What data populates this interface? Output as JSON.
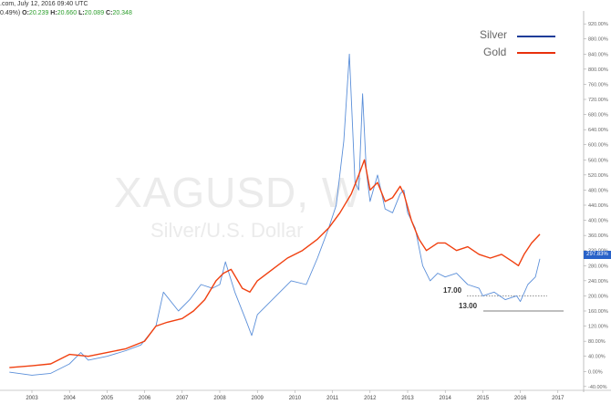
{
  "header": {
    "line1_text": ".com, July 12, 2016 09:40 UTC",
    "line2_prefix": "0.49%)",
    "o_label": "O:",
    "o_value": "20.239",
    "h_label": "H:",
    "h_value": "20.660",
    "l_label": "L:",
    "l_value": "20.089",
    "c_label": "C:",
    "c_value": "20.348"
  },
  "watermark": {
    "symbol": "XAGUSD, W",
    "description": "Silver/U.S. Dollar"
  },
  "price_tag": "297.83%",
  "levels": [
    {
      "label": "17.00",
      "y_pct": 200
    },
    {
      "label": "13.00",
      "y_pct": 160
    }
  ],
  "colors": {
    "silver": "#5b8fd9",
    "gold": "#f04010",
    "legend_silver": "#1f3d99",
    "legend_gold": "#e8300c",
    "price_tag_bg": "#2962c8"
  },
  "chart_data": {
    "type": "line",
    "y_unit": "%",
    "ylim": [
      -50,
      930
    ],
    "y_ticks": [
      "-40.00%",
      "0.00%",
      "40.00%",
      "80.00%",
      "120.00%",
      "160.00%",
      "200.00%",
      "240.00%",
      "280.00%",
      "320.00%",
      "360.00%",
      "400.00%",
      "440.00%",
      "480.00%",
      "520.00%",
      "560.00%",
      "600.00%",
      "640.00%",
      "680.00%",
      "720.00%",
      "760.00%",
      "800.00%",
      "840.00%",
      "880.00%",
      "920.00%"
    ],
    "x_ticks": [
      "2003",
      "2004",
      "2005",
      "2006",
      "2007",
      "2008",
      "2009",
      "2010",
      "2011",
      "2012",
      "2013",
      "2014",
      "2015",
      "2016",
      "2017"
    ],
    "legend_position": "top-right",
    "series": [
      {
        "name": "Silver",
        "x": [
          2002.4,
          2003.0,
          2003.5,
          2004.0,
          2004.3,
          2004.5,
          2005.0,
          2005.5,
          2005.9,
          2006.3,
          2006.5,
          2006.9,
          2007.2,
          2007.5,
          2007.8,
          2008.0,
          2008.15,
          2008.4,
          2008.7,
          2008.85,
          2009.0,
          2009.5,
          2009.9,
          2010.3,
          2010.6,
          2010.9,
          2011.1,
          2011.3,
          2011.45,
          2011.6,
          2011.7,
          2011.8,
          2011.9,
          2012.0,
          2012.2,
          2012.4,
          2012.6,
          2012.8,
          2012.9,
          2013.0,
          2013.2,
          2013.4,
          2013.6,
          2013.8,
          2014.0,
          2014.3,
          2014.6,
          2014.9,
          2015.0,
          2015.3,
          2015.6,
          2015.9,
          2016.0,
          2016.2,
          2016.4,
          2016.52
        ],
        "values": [
          -2,
          -10,
          -5,
          20,
          50,
          30,
          40,
          55,
          70,
          120,
          210,
          160,
          190,
          230,
          220,
          230,
          290,
          210,
          135,
          95,
          150,
          200,
          240,
          230,
          300,
          380,
          440,
          610,
          840,
          500,
          480,
          735,
          530,
          450,
          520,
          430,
          420,
          470,
          480,
          420,
          380,
          280,
          240,
          260,
          250,
          260,
          230,
          220,
          200,
          210,
          190,
          200,
          185,
          230,
          250,
          298
        ]
      },
      {
        "name": "Gold",
        "x": [
          2002.4,
          2003.0,
          2003.5,
          2004.0,
          2004.5,
          2005.0,
          2005.5,
          2006.0,
          2006.3,
          2006.6,
          2007.0,
          2007.3,
          2007.6,
          2007.9,
          2008.1,
          2008.3,
          2008.6,
          2008.8,
          2009.0,
          2009.4,
          2009.8,
          2010.2,
          2010.6,
          2010.9,
          2011.2,
          2011.5,
          2011.7,
          2011.85,
          2012.0,
          2012.2,
          2012.4,
          2012.6,
          2012.8,
          2012.9,
          2013.1,
          2013.3,
          2013.5,
          2013.8,
          2014.0,
          2014.3,
          2014.6,
          2014.9,
          2015.2,
          2015.5,
          2015.8,
          2015.95,
          2016.1,
          2016.3,
          2016.52
        ],
        "values": [
          10,
          15,
          20,
          45,
          40,
          50,
          60,
          80,
          120,
          130,
          140,
          160,
          190,
          240,
          260,
          270,
          220,
          210,
          240,
          270,
          300,
          320,
          350,
          380,
          420,
          470,
          520,
          560,
          480,
          500,
          450,
          460,
          490,
          470,
          400,
          350,
          320,
          340,
          340,
          320,
          330,
          310,
          300,
          310,
          290,
          280,
          310,
          340,
          363
        ]
      }
    ]
  }
}
